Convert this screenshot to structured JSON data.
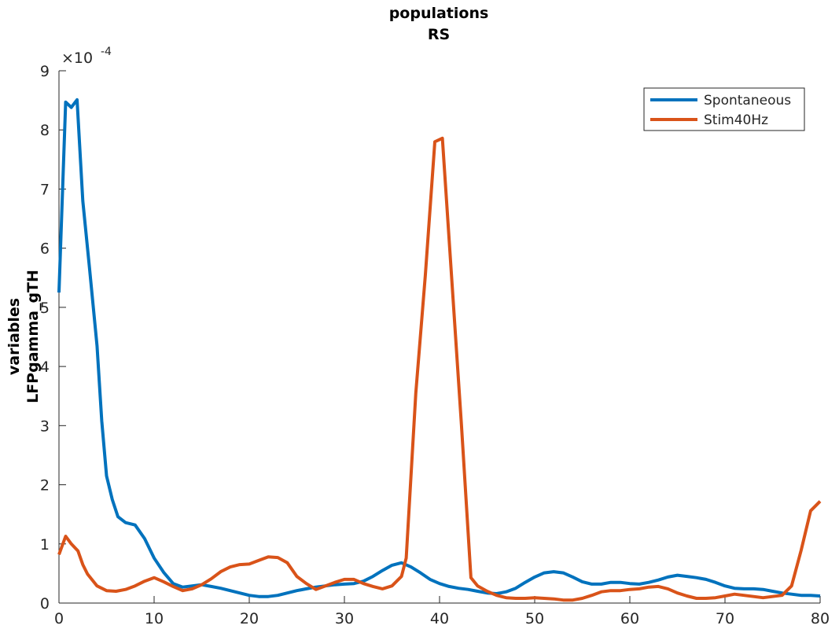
{
  "chart_data": {
    "type": "line",
    "title": "populations",
    "subtitle": "RS",
    "ylabel": [
      "variables",
      "LFPgamma_gTH"
    ],
    "y_multiplier": "×10",
    "y_exponent": "-4",
    "xlim": [
      0,
      80
    ],
    "xticks": [
      0,
      10,
      20,
      30,
      40,
      50,
      60,
      70,
      80
    ],
    "ylim": [
      0,
      9
    ],
    "yticks": [
      0,
      1,
      2,
      3,
      4,
      5,
      6,
      7,
      8,
      9
    ],
    "grid": false,
    "legend": "northeast",
    "series": [
      {
        "name": "Spontaneous",
        "color": "#0072bd",
        "x": [
          0,
          0.7,
          1.3,
          1.9,
          2.5,
          3.2,
          4,
          4.5,
          5,
          5.6,
          6.2,
          7,
          8,
          9,
          10,
          11,
          12,
          13,
          14,
          15,
          16,
          17,
          18,
          19,
          20,
          21,
          22,
          23,
          24,
          25,
          26,
          27,
          28,
          29,
          30,
          31,
          32,
          33,
          34,
          35,
          36,
          37,
          38,
          39,
          40,
          41,
          42,
          43,
          44,
          45,
          46,
          47,
          48,
          49,
          50,
          51,
          52,
          53,
          54,
          55,
          56,
          57,
          58,
          59,
          60,
          61,
          62,
          63,
          64,
          65,
          66,
          67,
          68,
          69,
          70,
          71,
          72,
          73,
          74,
          75,
          76,
          77,
          78,
          79,
          80
        ],
        "values": [
          5.25,
          8.47,
          8.38,
          8.51,
          6.8,
          5.68,
          4.35,
          3.08,
          2.15,
          1.75,
          1.46,
          1.36,
          1.32,
          1.09,
          0.76,
          0.52,
          0.33,
          0.27,
          0.29,
          0.31,
          0.28,
          0.25,
          0.21,
          0.17,
          0.13,
          0.11,
          0.11,
          0.13,
          0.17,
          0.21,
          0.24,
          0.27,
          0.29,
          0.31,
          0.32,
          0.33,
          0.37,
          0.45,
          0.55,
          0.64,
          0.68,
          0.61,
          0.51,
          0.4,
          0.33,
          0.28,
          0.25,
          0.23,
          0.2,
          0.17,
          0.16,
          0.19,
          0.25,
          0.35,
          0.44,
          0.51,
          0.53,
          0.51,
          0.44,
          0.36,
          0.32,
          0.32,
          0.35,
          0.35,
          0.33,
          0.32,
          0.35,
          0.39,
          0.44,
          0.47,
          0.45,
          0.43,
          0.4,
          0.35,
          0.29,
          0.25,
          0.24,
          0.24,
          0.23,
          0.2,
          0.17,
          0.15,
          0.13,
          0.13,
          0.12
        ]
      },
      {
        "name": "Stim40Hz",
        "color": "#d95319",
        "x": [
          0,
          0.7,
          1.3,
          2,
          2.5,
          3,
          4,
          5,
          6,
          7,
          8,
          9,
          10,
          11,
          12,
          13,
          14,
          15,
          16,
          17,
          18,
          19,
          20,
          21,
          22,
          23,
          24,
          25,
          26,
          27,
          28,
          29,
          30,
          31,
          32,
          33,
          34,
          35,
          36,
          36.5,
          37.5,
          38.5,
          39.5,
          40.3,
          41.2,
          42.3,
          43.3,
          44,
          45,
          46,
          47,
          48,
          49,
          50,
          51,
          52,
          53,
          54,
          55,
          56,
          57,
          58,
          59,
          60,
          61,
          62,
          63,
          64,
          65,
          66,
          67,
          68,
          69,
          70,
          71,
          72,
          73,
          74,
          75,
          76,
          77,
          78,
          79,
          80
        ],
        "values": [
          0.82,
          1.13,
          1.0,
          0.88,
          0.65,
          0.49,
          0.29,
          0.21,
          0.2,
          0.23,
          0.29,
          0.37,
          0.43,
          0.36,
          0.28,
          0.21,
          0.24,
          0.31,
          0.41,
          0.53,
          0.61,
          0.65,
          0.66,
          0.72,
          0.78,
          0.77,
          0.68,
          0.45,
          0.33,
          0.23,
          0.29,
          0.35,
          0.4,
          0.4,
          0.33,
          0.28,
          0.24,
          0.29,
          0.45,
          0.76,
          3.55,
          5.54,
          7.8,
          7.86,
          5.68,
          3.02,
          0.43,
          0.29,
          0.2,
          0.13,
          0.09,
          0.08,
          0.08,
          0.09,
          0.08,
          0.07,
          0.05,
          0.05,
          0.08,
          0.13,
          0.19,
          0.21,
          0.21,
          0.23,
          0.24,
          0.27,
          0.28,
          0.24,
          0.17,
          0.12,
          0.08,
          0.08,
          0.09,
          0.12,
          0.15,
          0.13,
          0.11,
          0.09,
          0.11,
          0.13,
          0.29,
          0.89,
          1.56,
          1.72
        ]
      }
    ]
  }
}
